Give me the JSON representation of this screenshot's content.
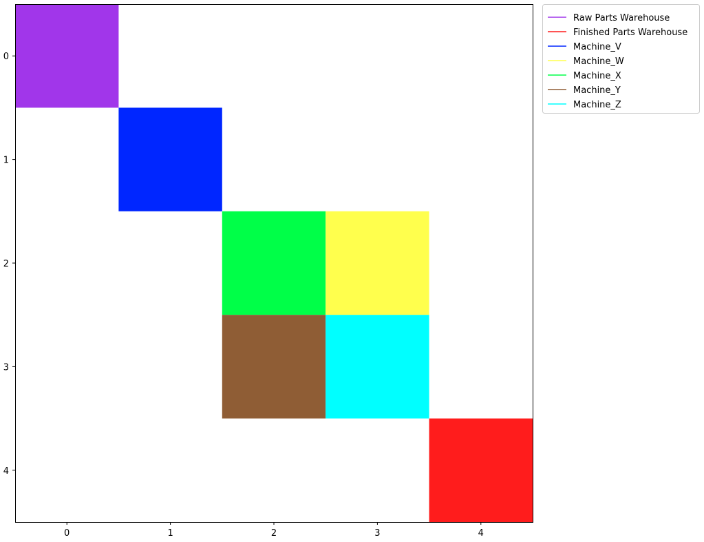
{
  "chart_data": {
    "type": "heatmap",
    "title": "",
    "xlabel": "",
    "ylabel": "",
    "x_ticks": [
      "0",
      "1",
      "2",
      "3",
      "4"
    ],
    "y_ticks": [
      "0",
      "1",
      "2",
      "3",
      "4"
    ],
    "xlim": [
      -0.5,
      4.5
    ],
    "ylim": [
      4.5,
      -0.5
    ],
    "grid": false,
    "legend_position": "outside-top-right",
    "cells": [
      {
        "x": 0,
        "y": 0,
        "label": "Raw Parts Warehouse",
        "color": "#a136ea"
      },
      {
        "x": 1,
        "y": 1,
        "label": "Machine_V",
        "color": "#0026ff"
      },
      {
        "x": 2,
        "y": 2,
        "label": "Machine_X",
        "color": "#00ff48"
      },
      {
        "x": 3,
        "y": 2,
        "label": "Machine_W",
        "color": "#ffff4d"
      },
      {
        "x": 2,
        "y": 3,
        "label": "Machine_Y",
        "color": "#8f5d35"
      },
      {
        "x": 3,
        "y": 3,
        "label": "Machine_Z",
        "color": "#00ffff"
      },
      {
        "x": 4,
        "y": 4,
        "label": "Finished Parts Warehouse",
        "color": "#ff1c1c"
      }
    ],
    "legend": [
      {
        "name": "Raw Parts Warehouse",
        "color": "#a136ea"
      },
      {
        "name": "Finished Parts Warehouse",
        "color": "#ff1c1c"
      },
      {
        "name": "Machine_V",
        "color": "#0026ff"
      },
      {
        "name": "Machine_W",
        "color": "#ffff4d"
      },
      {
        "name": "Machine_X",
        "color": "#00ff48"
      },
      {
        "name": "Machine_Y",
        "color": "#8f5d35"
      },
      {
        "name": "Machine_Z",
        "color": "#00ffff"
      }
    ]
  }
}
